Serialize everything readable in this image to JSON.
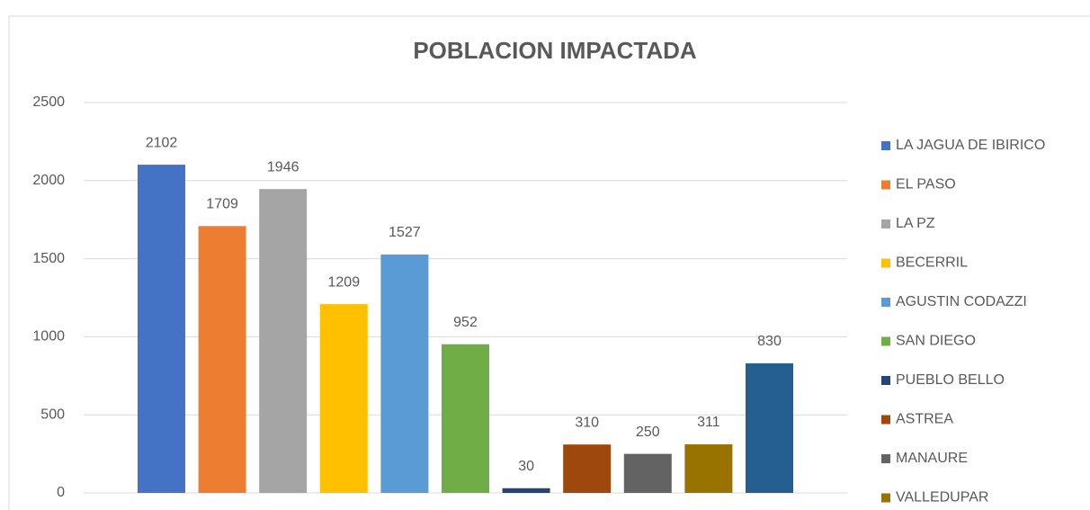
{
  "chart_data": {
    "type": "bar",
    "title": "POBLACION IMPACTADA",
    "categories": [
      "LA JAGUA DE IBIRICO",
      "EL PASO",
      "LA PZ",
      "BECERRIL",
      "AGUSTIN CODAZZI",
      "SAN DIEGO",
      "PUEBLO BELLO",
      "ASTREA",
      "MANAURE",
      "VALLEDUPAR",
      null
    ],
    "values": [
      2102,
      1709,
      1946,
      1209,
      1527,
      952,
      30,
      310,
      250,
      311,
      830
    ],
    "colors": [
      "#4472c4",
      "#ed7d31",
      "#a5a5a5",
      "#ffc000",
      "#5b9bd5",
      "#70ad47",
      "#264478",
      "#9e480e",
      "#636363",
      "#997300",
      "#255e91"
    ],
    "ylim": [
      0,
      2500
    ],
    "yticks": [
      0,
      500,
      1000,
      1500,
      2000,
      2500
    ],
    "grid": true,
    "legend": "right"
  }
}
